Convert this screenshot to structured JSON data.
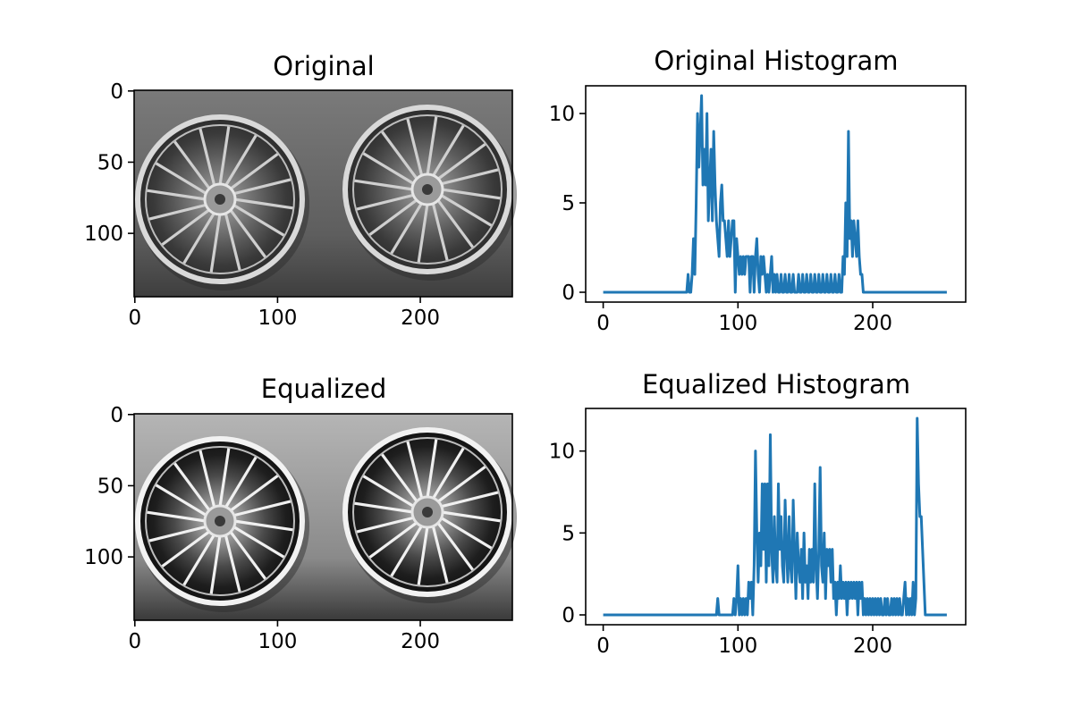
{
  "colors": {
    "line": "#1f77b4",
    "axes": "#000000",
    "background": "#ffffff"
  },
  "chart_data": [
    {
      "type": "image",
      "title": "Original",
      "image_size": [
        265,
        145
      ],
      "xticks": [
        0,
        100,
        200
      ],
      "yticks": [
        0,
        50,
        100
      ],
      "content_icon": "two-wheel-rims-grayscale-photo"
    },
    {
      "type": "line",
      "title": "Original Histogram",
      "xlim": [
        -13,
        269
      ],
      "ylim": [
        -0.55,
        11.55
      ],
      "xticks": [
        0,
        100,
        200
      ],
      "yticks": [
        0,
        5,
        10
      ],
      "series": [
        {
          "x": [
            0,
            62,
            63,
            64,
            65,
            66,
            67,
            68,
            69,
            70,
            71,
            72,
            73,
            74,
            75,
            76,
            77,
            78,
            79,
            80,
            81,
            82,
            83,
            84,
            85,
            86,
            87,
            88,
            89,
            90,
            91,
            92,
            93,
            94,
            95,
            96,
            97,
            98,
            99,
            100,
            101,
            102,
            103,
            104,
            105,
            106,
            107,
            108,
            109,
            110,
            111,
            112,
            113,
            114,
            115,
            116,
            117,
            118,
            119,
            120,
            121,
            122,
            123,
            124,
            125,
            126,
            127,
            128,
            129,
            130,
            131,
            132,
            133,
            134,
            135,
            136,
            137,
            138,
            139,
            140,
            141,
            142,
            143,
            144,
            145,
            146,
            147,
            148,
            149,
            150,
            151,
            152,
            153,
            154,
            155,
            156,
            157,
            158,
            159,
            160,
            161,
            162,
            163,
            164,
            165,
            166,
            167,
            168,
            169,
            170,
            171,
            172,
            173,
            174,
            175,
            176,
            177,
            178,
            179,
            180,
            181,
            182,
            183,
            184,
            185,
            186,
            187,
            188,
            189,
            190,
            191,
            192,
            193,
            194,
            195,
            196,
            197,
            198,
            199,
            200,
            201,
            202,
            203,
            204,
            205,
            206,
            255
          ],
          "y": [
            0,
            0,
            1,
            0,
            0,
            1,
            3,
            1,
            5,
            10,
            7,
            9,
            11,
            6,
            8,
            6,
            10,
            4,
            6,
            8,
            4,
            9,
            6,
            4,
            3,
            2,
            5,
            6,
            4,
            4,
            3,
            2,
            4,
            2,
            3,
            4,
            4,
            0,
            3,
            2,
            1,
            2,
            1,
            2,
            1,
            2,
            2,
            2,
            0,
            2,
            2,
            0,
            2,
            3,
            1,
            0,
            2,
            1,
            2,
            1,
            0,
            1,
            0,
            1,
            2,
            0,
            1,
            0,
            1,
            0,
            0,
            1,
            0,
            0,
            1,
            0,
            0,
            1,
            0,
            0,
            1,
            0,
            0,
            0,
            1,
            0,
            0,
            1,
            0,
            0,
            1,
            0,
            0,
            1,
            0,
            0,
            1,
            0,
            0,
            1,
            0,
            0,
            1,
            0,
            0,
            1,
            0,
            0,
            1,
            0,
            0,
            1,
            0,
            0,
            1,
            0,
            0,
            2,
            1,
            5,
            2,
            9,
            3,
            4,
            2,
            4,
            3,
            2,
            4,
            2,
            1,
            1,
            0,
            0,
            0,
            0,
            0,
            0,
            0,
            0,
            0,
            0,
            0,
            0,
            0,
            0,
            0
          ]
        }
      ]
    },
    {
      "type": "image",
      "title": "Equalized",
      "image_size": [
        265,
        145
      ],
      "xticks": [
        0,
        100,
        200
      ],
      "yticks": [
        0,
        50,
        100
      ],
      "content_icon": "two-wheel-rims-equalized-photo"
    },
    {
      "type": "line",
      "title": "Equalized Histogram",
      "xlim": [
        -13,
        269
      ],
      "ylim": [
        -0.6,
        12.6
      ],
      "xticks": [
        0,
        100,
        200
      ],
      "yticks": [
        0,
        5,
        10
      ],
      "series": [
        {
          "x": [
            0,
            84,
            85,
            86,
            87,
            88,
            96,
            97,
            98,
            99,
            100,
            101,
            102,
            103,
            104,
            105,
            106,
            107,
            108,
            109,
            110,
            111,
            112,
            113,
            114,
            115,
            116,
            117,
            118,
            119,
            120,
            121,
            122,
            123,
            124,
            125,
            126,
            127,
            128,
            129,
            130,
            131,
            132,
            133,
            134,
            135,
            136,
            137,
            138,
            139,
            140,
            141,
            142,
            143,
            144,
            145,
            146,
            147,
            148,
            149,
            150,
            151,
            152,
            153,
            154,
            155,
            156,
            157,
            158,
            159,
            160,
            161,
            162,
            163,
            164,
            165,
            166,
            167,
            168,
            169,
            170,
            171,
            172,
            173,
            174,
            175,
            176,
            177,
            178,
            179,
            180,
            181,
            182,
            183,
            184,
            185,
            186,
            187,
            188,
            189,
            190,
            191,
            192,
            193,
            194,
            195,
            196,
            197,
            198,
            199,
            200,
            201,
            202,
            203,
            204,
            205,
            206,
            207,
            208,
            209,
            210,
            211,
            212,
            213,
            214,
            215,
            216,
            217,
            218,
            219,
            220,
            221,
            222,
            223,
            224,
            225,
            226,
            227,
            228,
            229,
            230,
            231,
            232,
            233,
            234,
            235,
            236,
            237,
            238,
            239,
            240,
            241,
            255
          ],
          "y": [
            0,
            0,
            1,
            0,
            0,
            0,
            0,
            1,
            0,
            1,
            3,
            0,
            1,
            0,
            1,
            0,
            1,
            0,
            2,
            1,
            2,
            0,
            3,
            10,
            5,
            2,
            5,
            3,
            8,
            4,
            8,
            2,
            8,
            3,
            11,
            4,
            2,
            6,
            3,
            2,
            8,
            4,
            6,
            3,
            2,
            7,
            4,
            2,
            6,
            3,
            2,
            7,
            4,
            1,
            5,
            3,
            2,
            4,
            1,
            5,
            2,
            3,
            1,
            4,
            2,
            4,
            2,
            8,
            3,
            1,
            4,
            9,
            3,
            2,
            5,
            1,
            4,
            3,
            4,
            2,
            4,
            1,
            2,
            0,
            2,
            1,
            3,
            1,
            2,
            1,
            2,
            0,
            2,
            1,
            2,
            1,
            2,
            1,
            2,
            0,
            2,
            1,
            2,
            0,
            1,
            0,
            1,
            0,
            1,
            0,
            1,
            0,
            1,
            0,
            1,
            0,
            1,
            0,
            0,
            1,
            0,
            1,
            0,
            0,
            1,
            0,
            1,
            0,
            1,
            0,
            1,
            0,
            0,
            1,
            2,
            0,
            1,
            0,
            1,
            0,
            2,
            0,
            1,
            12,
            8,
            6,
            6,
            4,
            2,
            0,
            0,
            0,
            0
          ]
        }
      ]
    }
  ]
}
